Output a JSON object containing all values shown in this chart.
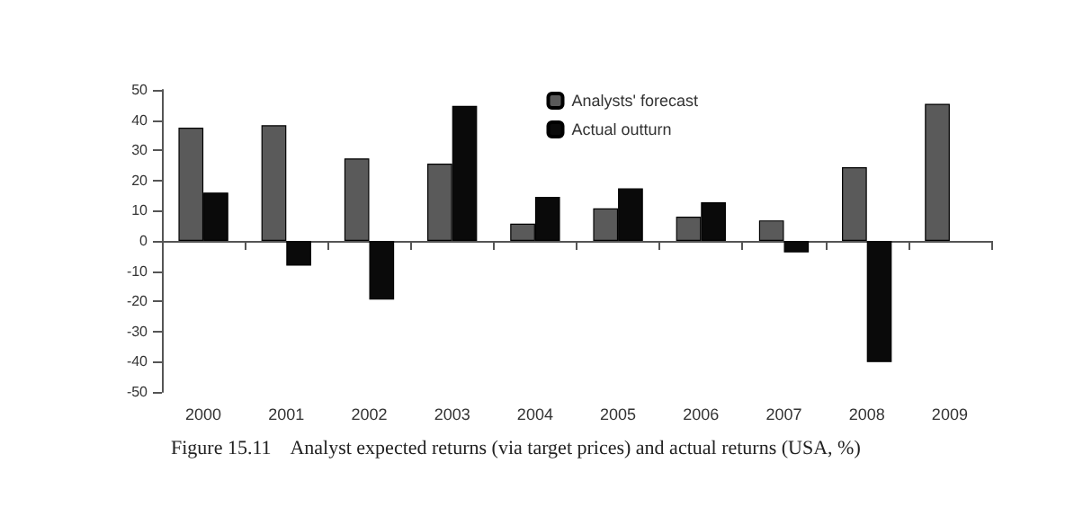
{
  "chart_data": {
    "type": "bar",
    "title": "Figure 15.11    Analyst expected returns (via target prices) and actual returns (USA, %)",
    "categories": [
      "2000",
      "2001",
      "2002",
      "2003",
      "2004",
      "2005",
      "2006",
      "2007",
      "2008",
      "2009"
    ],
    "series": [
      {
        "name": "Analysts' forecast",
        "color": "#5a5a5a",
        "values": [
          37.5,
          38.3,
          27.3,
          25.6,
          5.7,
          10.8,
          8,
          6.8,
          24.4,
          45.4
        ]
      },
      {
        "name": "Actual outturn",
        "color": "#0a0a0a",
        "values": [
          16,
          -8.2,
          -19.4,
          44.7,
          14.6,
          17.4,
          12.8,
          -3.8,
          -40.1,
          null
        ]
      }
    ],
    "ylim": [
      -50,
      50
    ],
    "yticks": [
      -50,
      -40,
      -30,
      -20,
      -10,
      0,
      10,
      20,
      30,
      40,
      50
    ],
    "legend": "top right"
  }
}
